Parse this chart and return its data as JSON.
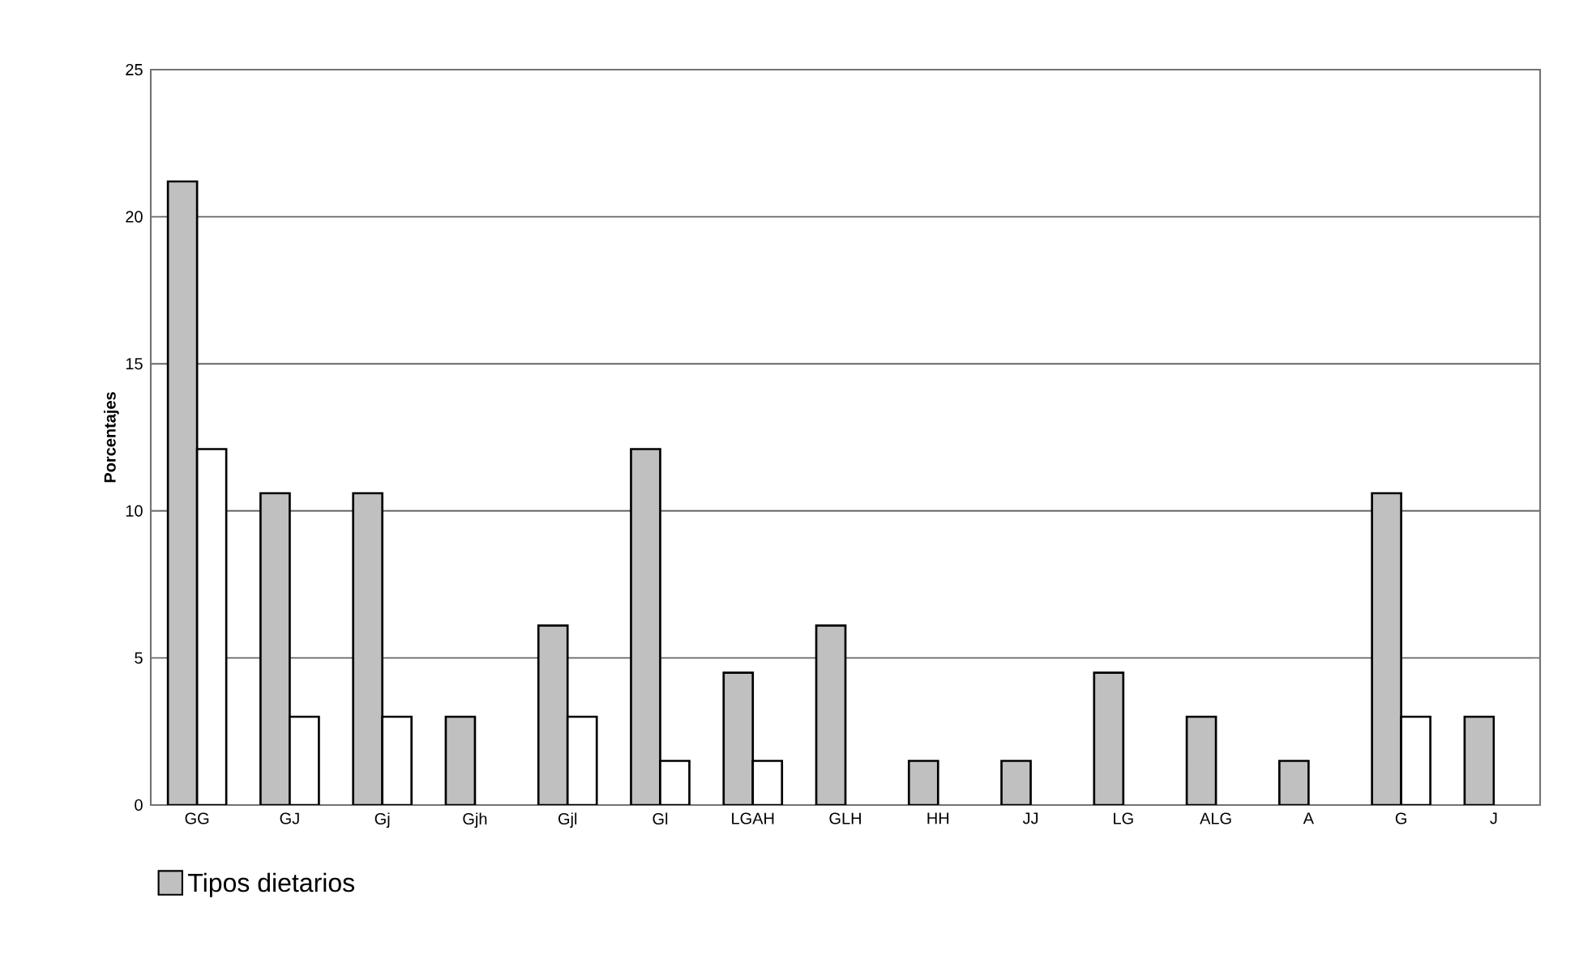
{
  "chart_data": {
    "type": "bar",
    "ylabel": "Porcentajes",
    "categories": [
      "GG",
      "GJ",
      "Gj",
      "Gjh",
      "Gjl",
      "Gl",
      "LGAH",
      "GLH",
      "HH",
      "JJ",
      "LG",
      "ALG",
      "A",
      "G",
      "J"
    ],
    "series": [
      {
        "name": "Tipos dietarios",
        "color": "#c0c0c0",
        "values": [
          21.2,
          10.6,
          10.6,
          3.0,
          6.1,
          12.1,
          4.5,
          6.1,
          1.5,
          1.5,
          4.5,
          3.0,
          1.5,
          10.6,
          3.0
        ]
      },
      {
        "color": "#ffffff",
        "values": [
          12.1,
          3.0,
          3.0,
          null,
          3.0,
          1.5,
          1.5,
          null,
          null,
          null,
          null,
          null,
          null,
          3.0,
          null
        ]
      }
    ],
    "ylim": [
      0,
      25
    ],
    "yticks": [
      0,
      5,
      10,
      15,
      20,
      25
    ],
    "grid": "y",
    "legend": "bottom left"
  }
}
